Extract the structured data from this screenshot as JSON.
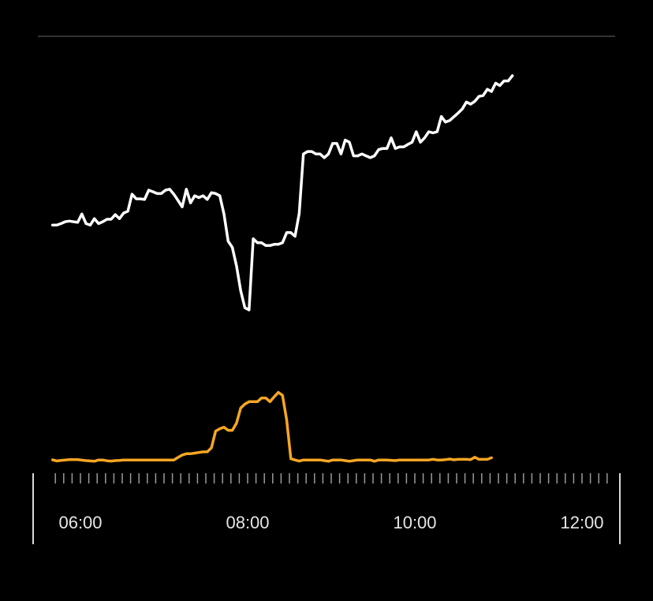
{
  "colors": {
    "background": "#000000",
    "primary_series": "#ffffff",
    "secondary_series": "#f5a623",
    "separator": "#333333",
    "axis": "#d9d9d9",
    "tick_text": "#e6e6e6"
  },
  "chart_data": {
    "type": "line",
    "title": "",
    "xlabel": "",
    "ylabel": "",
    "x_range": [
      "05:40",
      "12:40"
    ],
    "x_tick_labels": [
      "06:00",
      "08:00",
      "10:00",
      "12:00"
    ],
    "minor_tick_interval_minutes": 6,
    "grid": false,
    "legend": "none",
    "x_sample_interval_minutes": 3,
    "x_start": "05:40",
    "primary_ylim": [
      0,
      100
    ],
    "secondary_ylim": [
      0,
      100
    ],
    "series": [
      {
        "role": "primary",
        "color": "#ffffff",
        "values": [
          49.2,
          49.2,
          49.7,
          50.3,
          50.5,
          50.3,
          50.1,
          52.8,
          49.7,
          49.2,
          51.3,
          49.7,
          50.3,
          51.1,
          51.1,
          52.6,
          51.3,
          53.1,
          53.7,
          59.2,
          57.7,
          57.7,
          57.5,
          60.5,
          60.0,
          59.4,
          59.4,
          60.5,
          60.8,
          59.2,
          57.2,
          55.1,
          60.8,
          56.4,
          58.7,
          58.1,
          58.7,
          57.5,
          59.7,
          59.4,
          58.7,
          52.8,
          44.0,
          42.0,
          36.0,
          28.0,
          22.5,
          21.8,
          44.8,
          43.5,
          43.5,
          42.6,
          42.6,
          43.0,
          43.0,
          43.5,
          46.8,
          46.8,
          45.6,
          53.0,
          72.2,
          73.0,
          73.0,
          72.2,
          72.2,
          71.0,
          72.2,
          75.6,
          75.6,
          72.2,
          76.7,
          76.0,
          71.6,
          71.6,
          72.2,
          71.6,
          71.0,
          71.6,
          73.6,
          74.0,
          74.0,
          77.4,
          74.0,
          74.5,
          74.5,
          75.3,
          76.0,
          79.4,
          76.0,
          77.4,
          79.4,
          79.0,
          79.4,
          84.3,
          82.5,
          83.0,
          84.2,
          85.4,
          86.7,
          89.0,
          88.3,
          89.2,
          90.8,
          91.1,
          93.1,
          92.4,
          95.1,
          94.3,
          95.8,
          95.8,
          97.5
        ]
      },
      {
        "role": "secondary",
        "color": "#f5a623",
        "values": [
          1.0,
          0.3,
          0.6,
          0.9,
          1.1,
          1.1,
          1.1,
          0.8,
          0.5,
          0.3,
          0.1,
          0.9,
          0.9,
          0.4,
          0.2,
          0.5,
          0.6,
          0.9,
          0.9,
          0.9,
          0.9,
          0.9,
          0.9,
          0.9,
          0.9,
          0.9,
          0.9,
          0.9,
          0.9,
          0.9,
          2.5,
          4.0,
          4.8,
          4.8,
          5.2,
          5.6,
          6.0,
          6.0,
          8.5,
          19.0,
          20.5,
          21.5,
          19.5,
          19.5,
          24.0,
          33.5,
          36.0,
          37.5,
          37.5,
          37.5,
          39.8,
          39.8,
          37.5,
          40.5,
          43.3,
          41.5,
          26.0,
          1.7,
          0.9,
          0.2,
          0.9,
          0.9,
          0.9,
          0.9,
          0.9,
          0.5,
          0.1,
          0.9,
          0.9,
          0.9,
          0.5,
          0.1,
          0.5,
          0.9,
          0.9,
          0.9,
          0.9,
          0.1,
          0.9,
          0.9,
          0.9,
          0.7,
          0.5,
          0.9,
          0.9,
          0.9,
          0.9,
          0.9,
          0.9,
          0.9,
          0.9,
          1.3,
          0.9,
          0.9,
          1.1,
          1.5,
          1.0,
          1.3,
          1.3,
          1.3,
          1.1,
          2.6,
          1.3,
          1.3,
          1.3,
          2.3
        ]
      }
    ]
  }
}
